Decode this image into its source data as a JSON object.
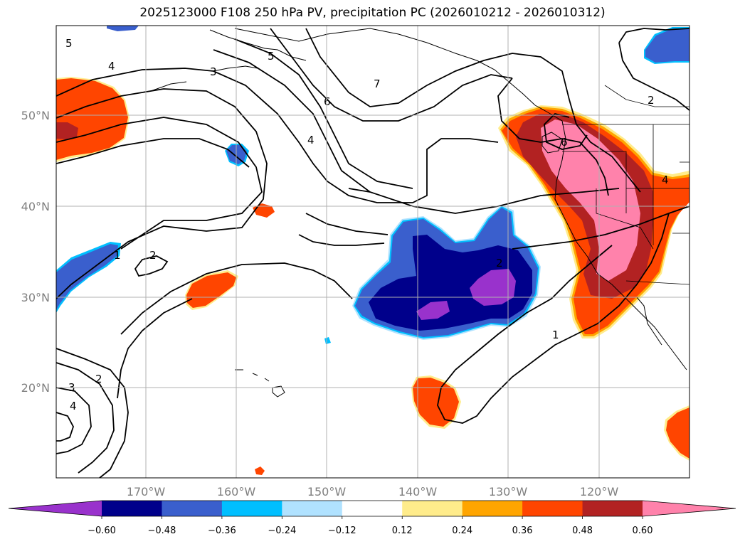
{
  "title": "2025123000 F108 250 hPa PV, precipitation PC (2026010212 - 2026010312)",
  "lat_labels": [
    "50°N",
    "40°N",
    "30°N",
    "20°N"
  ],
  "lon_labels": [
    "170°W",
    "160°W",
    "150°W",
    "140°W",
    "130°W",
    "120°W"
  ],
  "colorbar": {
    "colors": [
      "#9932cc",
      "#00008b",
      "#3a5fcd",
      "#00bfff",
      "#b0e2ff",
      "#ffffff",
      "#ffec8b",
      "#ffa500",
      "#ff4500",
      "#b22222",
      "#ff82ab"
    ],
    "labels": [
      "−0.60",
      "−0.48",
      "−0.36",
      "−0.24",
      "−0.12",
      "0.12",
      "0.24",
      "0.36",
      "0.48",
      "0.60"
    ]
  },
  "contour_labels": [
    "5",
    "4",
    "3",
    "5",
    "6",
    "7",
    "4",
    "2",
    "1",
    "2",
    "2",
    "3",
    "2",
    "4",
    "1",
    "4",
    "6"
  ]
}
